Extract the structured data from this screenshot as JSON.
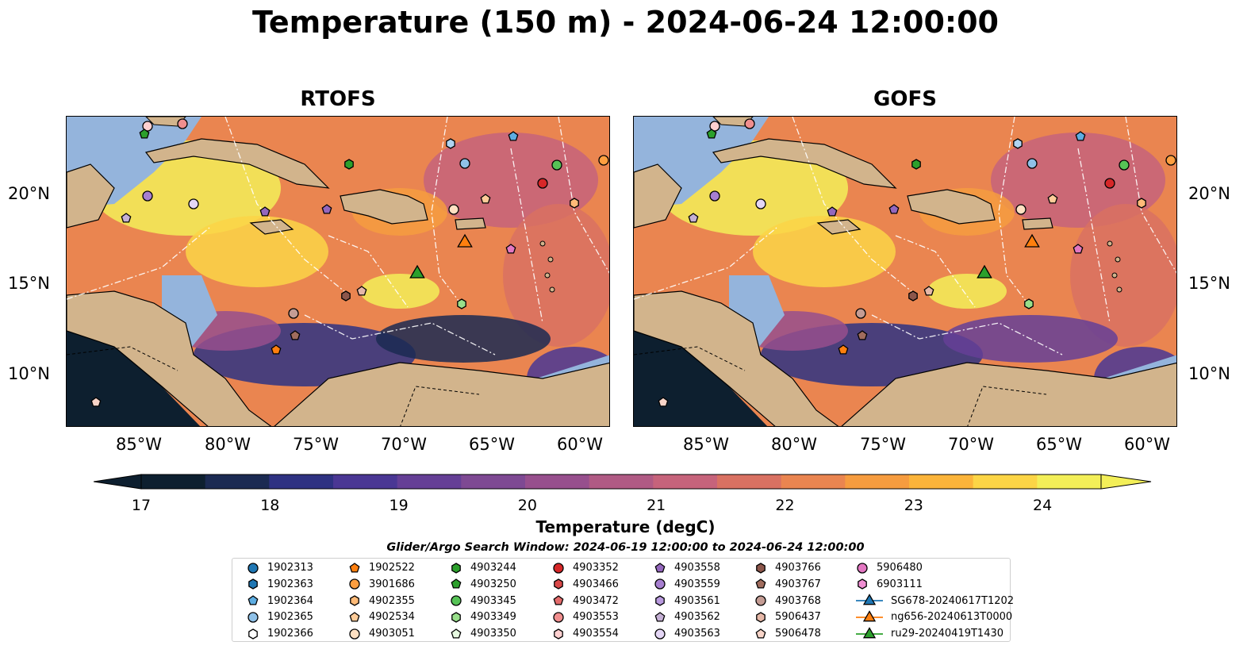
{
  "title": "Temperature (150 m) - 2024-06-24 12:00:00",
  "panels": [
    {
      "name": "RTOFS"
    },
    {
      "name": "GOFS"
    }
  ],
  "x_ticks": [
    "85°W",
    "80°W",
    "75°W",
    "70°W",
    "65°W",
    "60°W"
  ],
  "y_ticks": [
    "20°N",
    "15°N",
    "10°N"
  ],
  "colorbar": {
    "label": "Temperature (degC)",
    "ticks": [
      "17",
      "18",
      "19",
      "20",
      "21",
      "22",
      "23",
      "24"
    ],
    "colors": [
      "#0d1f2f",
      "#1b2a52",
      "#2e3282",
      "#4a3794",
      "#653f96",
      "#7e4993",
      "#974f8d",
      "#b05a84",
      "#c6637b",
      "#d97162",
      "#ea8550",
      "#f69c3f",
      "#fbb43a",
      "#fcd546",
      "#f3ef58"
    ]
  },
  "search_window": "Glider/Argo Search Window: 2024-06-19 12:00:00 to 2024-06-24 12:00:00",
  "legend": [
    {
      "label": "1902313",
      "color": "#1f77b4",
      "marker": "circle"
    },
    {
      "label": "1902363",
      "color": "#1f77b4",
      "marker": "hexagon"
    },
    {
      "label": "1902364",
      "color": "#5dade2",
      "marker": "pentagon"
    },
    {
      "label": "1902365",
      "color": "#8fc1e8",
      "marker": "circle"
    },
    {
      "label": "1902366",
      "color": "#ffffff",
      "marker": "hexagon"
    },
    {
      "label": "1902522",
      "color": "#ff7f0e",
      "marker": "pentagon"
    },
    {
      "label": "3901686",
      "color": "#ff9f40",
      "marker": "circle"
    },
    {
      "label": "4902355",
      "color": "#ffbb78",
      "marker": "hexagon"
    },
    {
      "label": "4902534",
      "color": "#ffcc99",
      "marker": "pentagon"
    },
    {
      "label": "4903051",
      "color": "#ffe0c2",
      "marker": "circle"
    },
    {
      "label": "4903244",
      "color": "#2ca02c",
      "marker": "hexagon"
    },
    {
      "label": "4903250",
      "color": "#2ca02c",
      "marker": "pentagon"
    },
    {
      "label": "4903345",
      "color": "#56c356",
      "marker": "circle"
    },
    {
      "label": "4903349",
      "color": "#98df8a",
      "marker": "hexagon"
    },
    {
      "label": "4903350",
      "color": "#e6f9e0",
      "marker": "pentagon"
    },
    {
      "label": "4903352",
      "color": "#d62728",
      "marker": "circle"
    },
    {
      "label": "4903466",
      "color": "#d94848",
      "marker": "hexagon"
    },
    {
      "label": "4903472",
      "color": "#e36b6b",
      "marker": "pentagon"
    },
    {
      "label": "4903553",
      "color": "#f08e8e",
      "marker": "circle"
    },
    {
      "label": "4903554",
      "color": "#ffd0d0",
      "marker": "hexagon"
    },
    {
      "label": "4903558",
      "color": "#9467bd",
      "marker": "pentagon"
    },
    {
      "label": "4903559",
      "color": "#a77fd0",
      "marker": "circle"
    },
    {
      "label": "4903561",
      "color": "#b99ade",
      "marker": "hexagon"
    },
    {
      "label": "4903562",
      "color": "#c5b0d5",
      "marker": "pentagon"
    },
    {
      "label": "4903563",
      "color": "#e4d6f5",
      "marker": "circle"
    },
    {
      "label": "4903766",
      "color": "#8c564b",
      "marker": "hexagon"
    },
    {
      "label": "4903767",
      "color": "#a06c5d",
      "marker": "pentagon"
    },
    {
      "label": "4903768",
      "color": "#c49c94",
      "marker": "circle"
    },
    {
      "label": "5906437",
      "color": "#e6b8a8",
      "marker": "hexagon"
    },
    {
      "label": "5906478",
      "color": "#f7d4c8",
      "marker": "pentagon"
    },
    {
      "label": "5906480",
      "color": "#e377c2",
      "marker": "circle"
    },
    {
      "label": "6903111",
      "color": "#f08fd3",
      "marker": "hexagon"
    },
    {
      "label": "SG678-20240617T1202",
      "color": "#1f77b4",
      "marker": "triangle"
    },
    {
      "label": "ng656-20240613T0000",
      "color": "#ff7f0e",
      "marker": "triangle"
    },
    {
      "label": "ru29-20240419T1430",
      "color": "#2ca02c",
      "marker": "triangle"
    }
  ],
  "land_color": "#d2b48c",
  "shelf_color": "#94b4dc"
}
